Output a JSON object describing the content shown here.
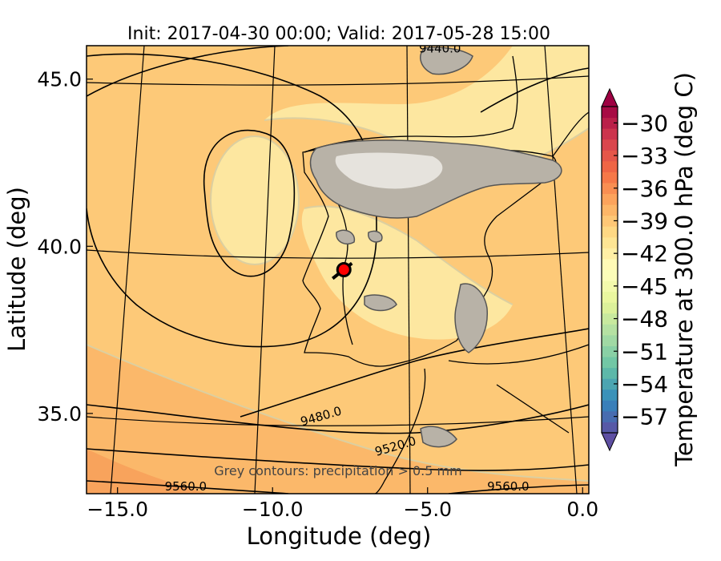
{
  "chart_data": {
    "type": "heatmap",
    "title": "Init: 2017-04-30 00:00; Valid: 2017-05-28 15:00",
    "xlabel": "Longitude (deg)",
    "ylabel": "Latitude (deg)",
    "xlim": [
      -16.0,
      0.2
    ],
    "ylim": [
      32.6,
      46.0
    ],
    "x_ticks": [
      -15.0,
      -10.0,
      -5.0,
      0.0
    ],
    "x_tick_labels": [
      "−15.0",
      "−10.0",
      "−5.0",
      "0.0"
    ],
    "y_ticks": [
      35.0,
      40.0,
      45.0
    ],
    "y_tick_labels": [
      "35.0",
      "40.0",
      "45.0"
    ],
    "colorbar": {
      "label": "Temperature at 300.0 hPa (deg C)",
      "min": -58.5,
      "max": -28.5,
      "extend": "both",
      "tick_values": [
        -30,
        -33,
        -36,
        -39,
        -42,
        -45,
        -48,
        -51,
        -54,
        -57
      ],
      "tick_labels": [
        "−30",
        "−33",
        "−36",
        "−39",
        "−42",
        "−45",
        "−48",
        "−51",
        "−54",
        "−57"
      ]
    },
    "contour_labels": [
      {
        "text": "9440.0",
        "lon": -4.6,
        "lat": 45.8
      },
      {
        "text": "9480.0",
        "lon": -8.4,
        "lat": 34.8
      },
      {
        "text": "9520.0",
        "lon": -6.0,
        "lat": 33.9
      },
      {
        "text": "9560.0",
        "lon": -12.8,
        "lat": 32.7
      },
      {
        "text": "9560.0",
        "lon": -2.4,
        "lat": 32.7
      }
    ],
    "marker": {
      "lon": -7.7,
      "lat": 39.3,
      "color": "#ff0000"
    },
    "annotation": "Grey contours: precipitation > 0.5 mm",
    "field_colors": {
      "light": "#fde7a0",
      "mid": "#fdc978",
      "warm": "#fbb86a",
      "warmest": "#f8a35c"
    }
  }
}
